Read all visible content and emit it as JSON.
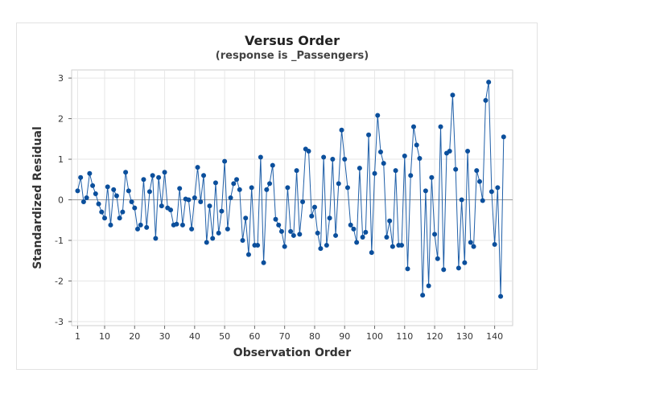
{
  "chart_data": {
    "type": "line",
    "title": "Versus Order",
    "subtitle": "(response is _Passengers)",
    "xlabel": "Observation Order",
    "ylabel": "Standardized Residual",
    "xlim": [
      -1,
      146
    ],
    "ylim": [
      -3.1,
      3.2
    ],
    "xticks": [
      1,
      10,
      20,
      30,
      40,
      50,
      60,
      70,
      80,
      90,
      100,
      110,
      120,
      130,
      140
    ],
    "yticks": [
      -3,
      -2,
      -1,
      0,
      1,
      2,
      3
    ],
    "grid": true,
    "reference_line_y": 0,
    "colors": {
      "series": "#1f5fa8",
      "marker": "#0b4f9c",
      "grid": "#e6e6e6",
      "reference": "#9a9a9a"
    },
    "series": [
      {
        "values": [
          0.22,
          0.55,
          -0.05,
          0.05,
          0.65,
          0.35,
          0.15,
          -0.1,
          -0.3,
          -0.45,
          0.32,
          -0.62,
          0.25,
          0.1,
          -0.45,
          -0.3,
          0.68,
          0.22,
          -0.05,
          -0.2,
          -0.72,
          -0.62,
          0.5,
          -0.68,
          0.2,
          0.6,
          -0.95,
          0.55,
          -0.15,
          0.68,
          -0.2,
          -0.25,
          -0.62,
          -0.6,
          0.28,
          -0.62,
          0.02,
          0.0,
          -0.72,
          0.05,
          0.8,
          -0.05,
          0.6,
          -1.05,
          -0.15,
          -0.95,
          0.42,
          -0.82,
          -0.28,
          0.95,
          -0.72,
          0.05,
          0.4,
          0.5,
          0.25,
          -1.0,
          -0.45,
          -1.35,
          0.3,
          -1.12,
          -1.12,
          1.05,
          -1.55,
          0.25,
          0.4,
          0.85,
          -0.48,
          -0.62,
          -0.78,
          -1.15,
          0.3,
          -0.78,
          -0.88,
          0.72,
          -0.85,
          -0.05,
          1.25,
          1.2,
          -0.4,
          -0.18,
          -0.82,
          -1.2,
          1.05,
          -1.12,
          -0.45,
          1.0,
          -0.88,
          0.4,
          1.72,
          1.0,
          0.3,
          -0.62,
          -0.72,
          -1.05,
          0.78,
          -0.92,
          -0.8,
          1.6,
          -1.3,
          0.65,
          2.08,
          1.18,
          0.9,
          -0.92,
          -0.52,
          -1.15,
          0.72,
          -1.12,
          -1.12,
          1.08,
          -1.7,
          0.6,
          1.8,
          1.35,
          1.02,
          -2.35,
          0.22,
          -2.12,
          0.55,
          -0.85,
          -1.45,
          1.8,
          -1.72,
          1.15,
          1.2,
          2.58,
          0.75,
          -1.68,
          0.0,
          -1.55,
          1.2,
          -1.05,
          -1.15,
          0.72,
          0.45,
          -0.02,
          2.45,
          2.9,
          0.2,
          -1.1,
          0.3,
          -2.38,
          1.55
        ]
      }
    ]
  }
}
